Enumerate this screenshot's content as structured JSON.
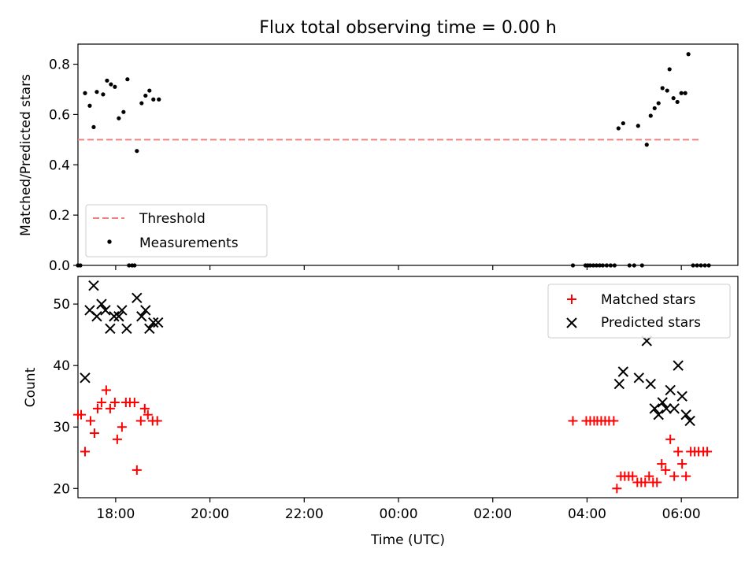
{
  "chart_data": [
    {
      "type": "scatter",
      "title": "Flux total observing time = 0.00 h",
      "xlabel": "",
      "ylabel": "Matched/Predicted stars",
      "xlim": [
        "17:12",
        "07:12"
      ],
      "ylim": [
        0,
        0.88
      ],
      "yticks": [
        "0.0",
        "0.2",
        "0.4",
        "0.6",
        "0.8"
      ],
      "legend_position": "lower-left",
      "threshold": {
        "name": "Threshold",
        "y": 0.5,
        "x_range": [
          "17:12",
          "06:24"
        ],
        "color": "#f08080",
        "style": "dashed"
      },
      "series": [
        {
          "name": "Measurements",
          "color": "#000000",
          "points": [
            [
              "17:12",
              0.0
            ],
            [
              "17:15",
              0.0
            ],
            [
              "17:21",
              0.685
            ],
            [
              "17:27",
              0.635
            ],
            [
              "17:32",
              0.55
            ],
            [
              "17:36",
              0.69
            ],
            [
              "17:44",
              0.68
            ],
            [
              "17:49",
              0.735
            ],
            [
              "17:54",
              0.72
            ],
            [
              "17:59",
              0.71
            ],
            [
              "18:04",
              0.585
            ],
            [
              "18:10",
              0.61
            ],
            [
              "18:15",
              0.74
            ],
            [
              "18:17",
              0.0
            ],
            [
              "18:21",
              0.0
            ],
            [
              "18:24",
              0.0
            ],
            [
              "18:27",
              0.455
            ],
            [
              "18:33",
              0.645
            ],
            [
              "18:38",
              0.675
            ],
            [
              "18:43",
              0.695
            ],
            [
              "18:48",
              0.66
            ],
            [
              "18:55",
              0.66
            ],
            [
              "03:42",
              0.0
            ],
            [
              "03:58",
              0.0
            ],
            [
              "04:01",
              0.0
            ],
            [
              "04:04",
              0.0
            ],
            [
              "04:08",
              0.0
            ],
            [
              "04:12",
              0.0
            ],
            [
              "04:16",
              0.0
            ],
            [
              "04:20",
              0.0
            ],
            [
              "04:25",
              0.0
            ],
            [
              "04:30",
              0.0
            ],
            [
              "04:35",
              0.0
            ],
            [
              "04:40",
              0.545
            ],
            [
              "04:46",
              0.565
            ],
            [
              "04:54",
              0.0
            ],
            [
              "05:00",
              0.0
            ],
            [
              "05:05",
              0.555
            ],
            [
              "05:10",
              0.0
            ],
            [
              "05:16",
              0.48
            ],
            [
              "05:21",
              0.595
            ],
            [
              "05:26",
              0.625
            ],
            [
              "05:31",
              0.645
            ],
            [
              "05:36",
              0.705
            ],
            [
              "05:42",
              0.695
            ],
            [
              "05:45",
              0.78
            ],
            [
              "05:50",
              0.665
            ],
            [
              "05:55",
              0.65
            ],
            [
              "06:00",
              0.685
            ],
            [
              "06:05",
              0.685
            ],
            [
              "06:09",
              0.84
            ],
            [
              "06:15",
              0.0
            ],
            [
              "06:20",
              0.0
            ],
            [
              "06:25",
              0.0
            ],
            [
              "06:30",
              0.0
            ],
            [
              "06:35",
              0.0
            ]
          ]
        }
      ]
    },
    {
      "type": "scatter",
      "title": "",
      "xlabel": "Time (UTC)",
      "ylabel": "Count",
      "xlim": [
        "17:12",
        "07:12"
      ],
      "ylim": [
        18.5,
        54.5
      ],
      "yticks": [
        "20",
        "30",
        "40",
        "50"
      ],
      "xticks": [
        "18:00",
        "20:00",
        "22:00",
        "00:00",
        "02:00",
        "04:00",
        "06:00"
      ],
      "legend_position": "upper-right",
      "series": [
        {
          "name": "Matched stars",
          "marker": "plus",
          "color": "#ff0000",
          "points": [
            [
              "17:12",
              32
            ],
            [
              "17:16",
              32
            ],
            [
              "17:21",
              26
            ],
            [
              "17:28",
              31
            ],
            [
              "17:33",
              29
            ],
            [
              "17:37",
              33
            ],
            [
              "17:42",
              34
            ],
            [
              "17:48",
              36
            ],
            [
              "17:53",
              33
            ],
            [
              "17:59",
              34
            ],
            [
              "18:02",
              28
            ],
            [
              "18:08",
              30
            ],
            [
              "18:13",
              34
            ],
            [
              "18:18",
              34
            ],
            [
              "18:24",
              34
            ],
            [
              "18:27",
              23
            ],
            [
              "18:32",
              31
            ],
            [
              "18:37",
              33
            ],
            [
              "18:41",
              32
            ],
            [
              "18:47",
              31
            ],
            [
              "18:53",
              31
            ],
            [
              "03:42",
              31
            ],
            [
              "03:59",
              31
            ],
            [
              "04:04",
              31
            ],
            [
              "04:09",
              31
            ],
            [
              "04:13",
              31
            ],
            [
              "04:18",
              31
            ],
            [
              "04:23",
              31
            ],
            [
              "04:28",
              31
            ],
            [
              "04:34",
              31
            ],
            [
              "04:38",
              20
            ],
            [
              "04:43",
              22
            ],
            [
              "04:48",
              22
            ],
            [
              "04:53",
              22
            ],
            [
              "04:58",
              22
            ],
            [
              "05:04",
              21
            ],
            [
              "05:09",
              21
            ],
            [
              "05:14",
              21
            ],
            [
              "05:19",
              22
            ],
            [
              "05:24",
              21
            ],
            [
              "05:29",
              21
            ],
            [
              "05:35",
              24
            ],
            [
              "05:40",
              23
            ],
            [
              "05:46",
              28
            ],
            [
              "05:51",
              22
            ],
            [
              "05:56",
              26
            ],
            [
              "06:01",
              24
            ],
            [
              "06:06",
              22
            ],
            [
              "06:12",
              26
            ],
            [
              "06:17",
              26
            ],
            [
              "06:22",
              26
            ],
            [
              "06:28",
              26
            ],
            [
              "06:33",
              26
            ]
          ]
        },
        {
          "name": "Predicted stars",
          "marker": "x",
          "color": "#000000",
          "points": [
            [
              "17:21",
              38
            ],
            [
              "17:27",
              49
            ],
            [
              "17:32",
              53
            ],
            [
              "17:36",
              48
            ],
            [
              "17:42",
              50
            ],
            [
              "17:47",
              49
            ],
            [
              "17:53",
              46
            ],
            [
              "17:58",
              48
            ],
            [
              "18:04",
              48
            ],
            [
              "18:08",
              49
            ],
            [
              "18:14",
              46
            ],
            [
              "18:27",
              51
            ],
            [
              "18:33",
              48
            ],
            [
              "18:38",
              49
            ],
            [
              "18:43",
              46
            ],
            [
              "18:48",
              47
            ],
            [
              "18:54",
              47
            ],
            [
              "04:41",
              37
            ],
            [
              "04:46",
              39
            ],
            [
              "05:06",
              38
            ],
            [
              "05:16",
              44
            ],
            [
              "05:21",
              37
            ],
            [
              "05:26",
              33
            ],
            [
              "05:31",
              32
            ],
            [
              "05:36",
              34
            ],
            [
              "05:41",
              33
            ],
            [
              "05:46",
              36
            ],
            [
              "05:51",
              33
            ],
            [
              "05:56",
              40
            ],
            [
              "06:01",
              35
            ],
            [
              "06:06",
              32
            ],
            [
              "06:11",
              31
            ]
          ]
        }
      ]
    }
  ]
}
